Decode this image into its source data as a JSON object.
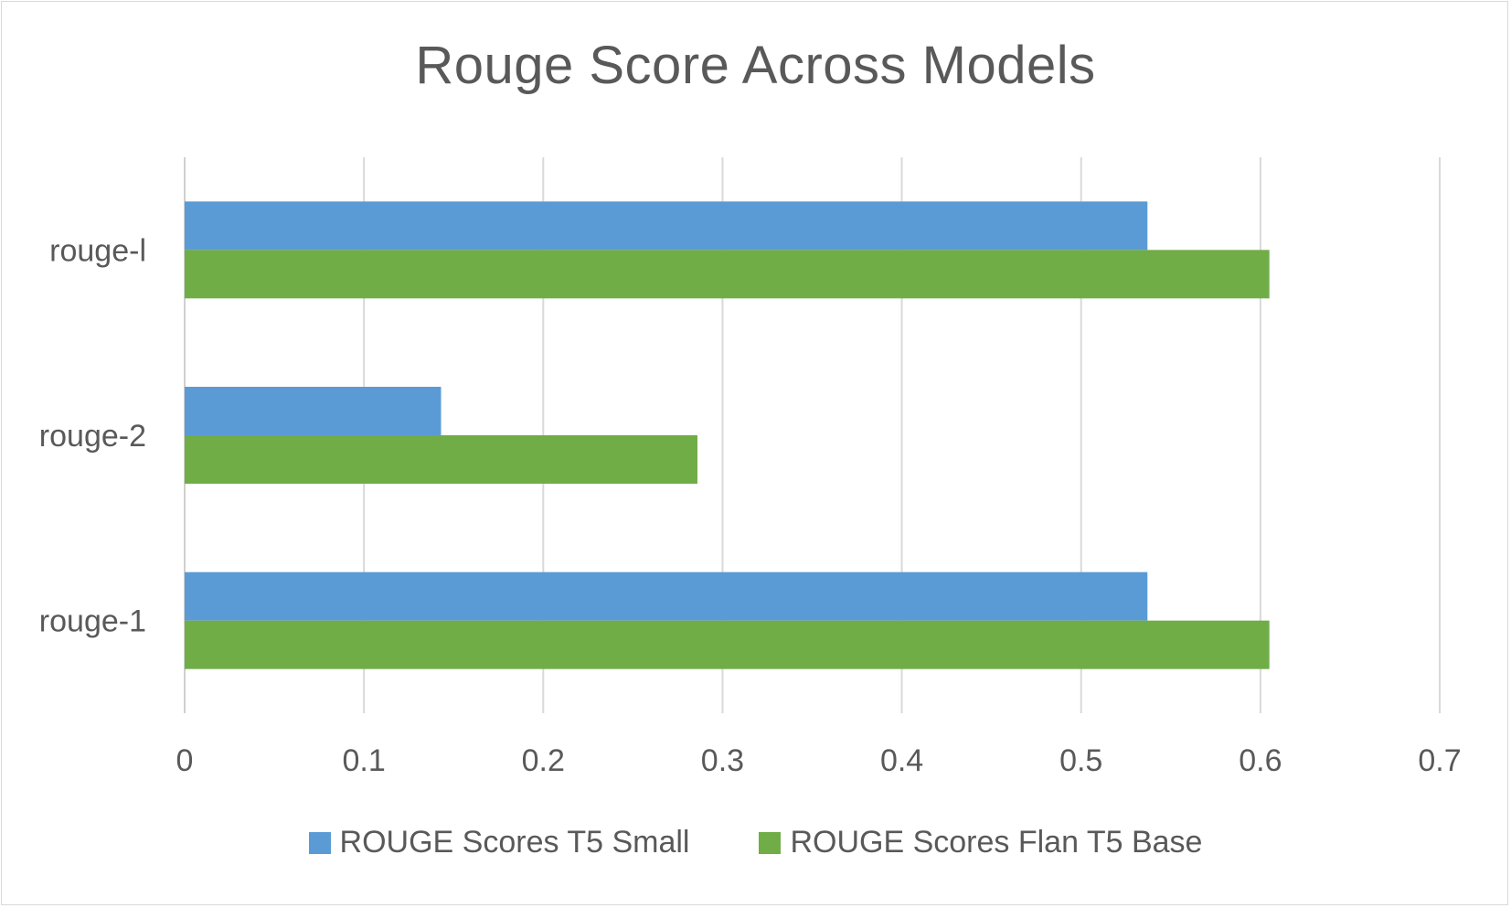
{
  "chart_data": {
    "type": "bar",
    "orientation": "horizontal",
    "title": "Rouge Score Across Models",
    "categories": [
      "rouge-l",
      "rouge-2",
      "rouge-1"
    ],
    "series": [
      {
        "name": "ROUGE Scores T5 Small",
        "color": "#5b9bd5",
        "values": [
          0.537,
          0.143,
          0.537
        ]
      },
      {
        "name": "ROUGE Scores Flan T5 Base",
        "color": "#70ad47",
        "values": [
          0.605,
          0.286,
          0.605
        ]
      }
    ],
    "xlim": [
      0,
      0.7
    ],
    "xticks": [
      "0",
      "0.1",
      "0.2",
      "0.3",
      "0.4",
      "0.5",
      "0.6",
      "0.7"
    ],
    "grid": "vertical",
    "legend_position": "bottom"
  }
}
